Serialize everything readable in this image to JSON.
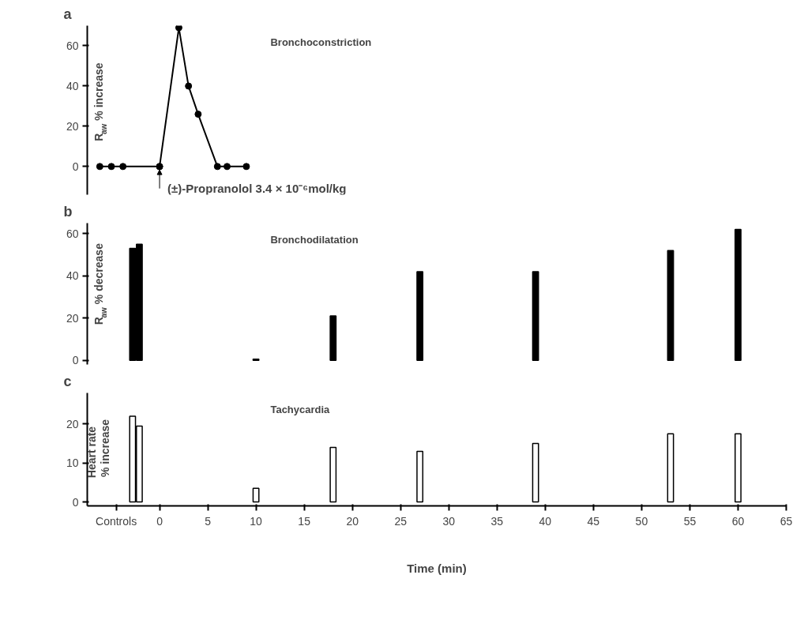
{
  "chart_data": [
    {
      "type": "line",
      "title": "a",
      "annotations": [
        "Bronchoconstriction",
        {
          "text": "(±)-Propranolol 3.4 × 10⁻⁶mol/kg",
          "x": 0,
          "y": 0
        }
      ],
      "ylabel": "R$_{aw}$ % increase",
      "x": [
        -6.2,
        -5,
        -3.8,
        null,
        0,
        2,
        3,
        4,
        6,
        7,
        9
      ],
      "series": [
        {
          "color": "#000000",
          "values": [
            0,
            0,
            0,
            null,
            0,
            69,
            40,
            26,
            0,
            0,
            0
          ]
        }
      ],
      "marker": "circle",
      "xlim": [
        -7.5,
        65
      ],
      "ylim": [
        -14,
        70
      ],
      "yticks": [
        0,
        20,
        40,
        60
      ],
      "tick_labels": "y",
      "grid": false
    },
    {
      "type": "bar",
      "title": "b",
      "annotations": [
        "Bronchodilatation"
      ],
      "ylabel": "R$_{aw}$ % decrease",
      "x": [
        -2.8,
        -2.1,
        10,
        18,
        27,
        39,
        53,
        60
      ],
      "series": [
        {
          "color": "#000000",
          "values": [
            53,
            55,
            0.5,
            21,
            42,
            42,
            52,
            62
          ]
        }
      ],
      "xlim": [
        -7.5,
        65
      ],
      "ylim": [
        -2,
        65
      ],
      "yticks": [
        0,
        20,
        40,
        60
      ],
      "tick_labels": "y",
      "grid": false
    },
    {
      "type": "bar",
      "title": "c",
      "annotations": [
        "Tachycardia"
      ],
      "ylabel": "Heart rate\n% increase",
      "xlabel": "Time (min)",
      "x": [
        -2.8,
        -2.1,
        10,
        18,
        27,
        39,
        53,
        60
      ],
      "series": [
        {
          "color": "#ffffff",
          "values": [
            22,
            19.5,
            3.5,
            14,
            13,
            15,
            17.5,
            17.5
          ]
        }
      ],
      "xlim": [
        -7.5,
        65
      ],
      "xticks": [
        {
          "value": -4.5,
          "label": "Controls"
        },
        0,
        5,
        10,
        15,
        20,
        25,
        30,
        35,
        40,
        45,
        50,
        55,
        60,
        65
      ],
      "ylim": [
        -1,
        28
      ],
      "yticks": [
        0,
        10,
        20
      ],
      "grid": false
    }
  ]
}
